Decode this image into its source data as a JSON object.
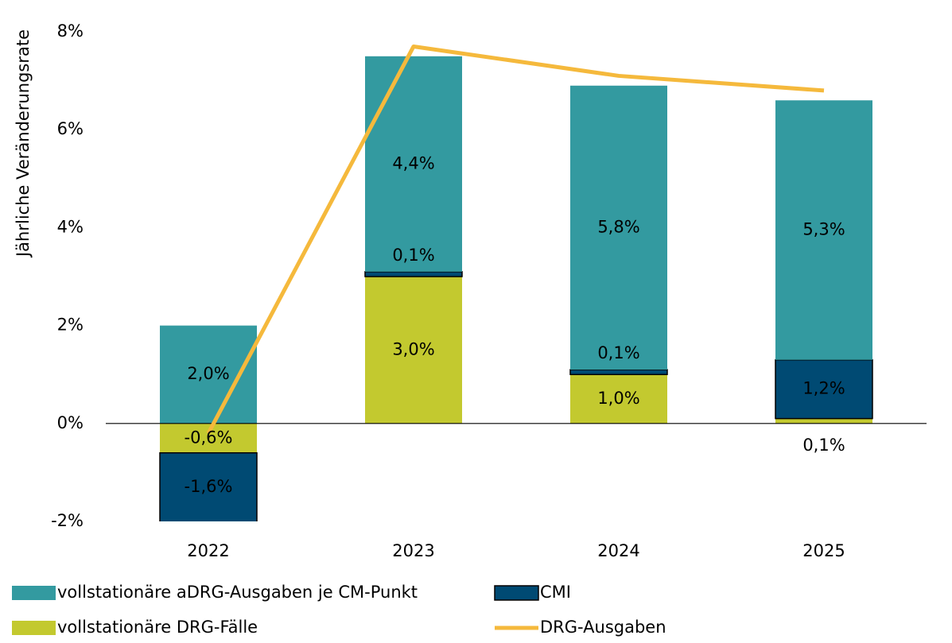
{
  "chart_data": {
    "type": "stacked_bar_line",
    "ylabel": "Jährliche Veränderungsrate",
    "categories": [
      "2022",
      "2023",
      "2024",
      "2025"
    ],
    "ylim": [
      -2,
      8
    ],
    "yticks": [
      {
        "value": -2,
        "label": "-2%"
      },
      {
        "value": 0,
        "label": "0%"
      },
      {
        "value": 2,
        "label": "2%"
      },
      {
        "value": 4,
        "label": "4%"
      },
      {
        "value": 6,
        "label": "6%"
      },
      {
        "value": 8,
        "label": "8%"
      }
    ],
    "series": [
      {
        "name": "vollstationäre DRG-Fälle",
        "color": "#c3c92f",
        "type": "bar",
        "values": [
          -0.6,
          3.0,
          1.0,
          0.1
        ],
        "value_labels": [
          "-0,6%",
          "3,0%",
          "1,0%",
          "0,1%"
        ]
      },
      {
        "name": "CMI",
        "color": "#004a73",
        "type": "bar",
        "values": [
          -1.6,
          0.1,
          0.1,
          1.2
        ],
        "value_labels": [
          "-1,6%",
          "0,1%",
          "0,1%",
          "1,2%"
        ]
      },
      {
        "name": "vollstationäre aDRG-Ausgaben je CM-Punkt",
        "color": "#339aa0",
        "type": "bar",
        "values": [
          2.0,
          4.4,
          5.8,
          5.3
        ],
        "value_labels": [
          "2,0%",
          "4,4%",
          "5,8%",
          "5,3%"
        ]
      },
      {
        "name": "DRG-Ausgaben",
        "color": "#f5b93c",
        "type": "line",
        "values": [
          -0.2,
          7.7,
          7.1,
          6.8
        ]
      }
    ]
  }
}
